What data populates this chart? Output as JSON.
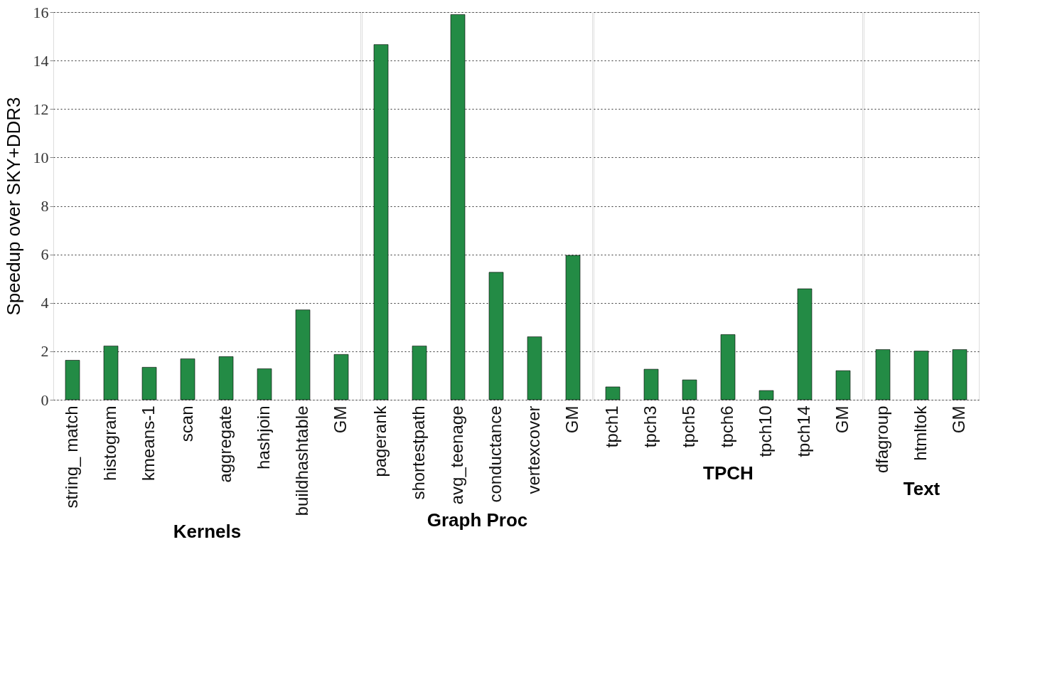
{
  "chart_data": [
    {
      "type": "bar",
      "xlabel": "Kernels",
      "ylabel": "Speedup over SKY+DDR3",
      "categories": [
        "string_ match",
        "histogram",
        "kmeans-1",
        "scan",
        "aggregate",
        "hashjoin",
        "buildhashtable",
        "GM"
      ],
      "values": [
        1.63,
        2.22,
        1.34,
        1.69,
        1.78,
        1.28,
        3.71,
        1.87
      ],
      "color": "#238b45",
      "ylim": [
        0,
        16
      ],
      "yticks": [
        0,
        2,
        4,
        6,
        8,
        10,
        12,
        14,
        16
      ],
      "grid": "y",
      "legend": false
    },
    {
      "type": "bar",
      "xlabel": "Graph Proc",
      "categories": [
        "pagerank",
        "shortestpath",
        "avg_teenage",
        "conductance",
        "vertexcover",
        "GM"
      ],
      "values": [
        14.66,
        2.22,
        15.9,
        5.26,
        2.6,
        5.96
      ],
      "color": "#238b45",
      "ylim": [
        0,
        16
      ],
      "yticks": [
        0,
        2,
        4,
        6,
        8,
        10,
        12,
        14,
        16
      ],
      "grid": "y",
      "legend": false,
      "tick_labels": "x"
    },
    {
      "type": "bar",
      "xlabel": "TPCH",
      "categories": [
        "tpch1",
        "tpch3",
        "tpch5",
        "tpch6",
        "tpch10",
        "tpch14",
        "GM"
      ],
      "values": [
        0.53,
        1.26,
        0.82,
        2.69,
        0.38,
        4.58,
        1.2
      ],
      "color": "#238b45",
      "ylim": [
        0,
        16
      ],
      "yticks": [
        0,
        2,
        4,
        6,
        8,
        10,
        12,
        14,
        16
      ],
      "grid": "y",
      "legend": false,
      "tick_labels": "x"
    },
    {
      "type": "bar",
      "xlabel": "Text",
      "categories": [
        "dfagroup",
        "htmltok",
        "GM"
      ],
      "values": [
        2.07,
        2.01,
        2.07
      ],
      "color": "#238b45",
      "ylim": [
        0,
        16
      ],
      "yticks": [
        0,
        2,
        4,
        6,
        8,
        10,
        12,
        14,
        16
      ],
      "grid": "y",
      "legend": false,
      "tick_labels": "x"
    }
  ]
}
